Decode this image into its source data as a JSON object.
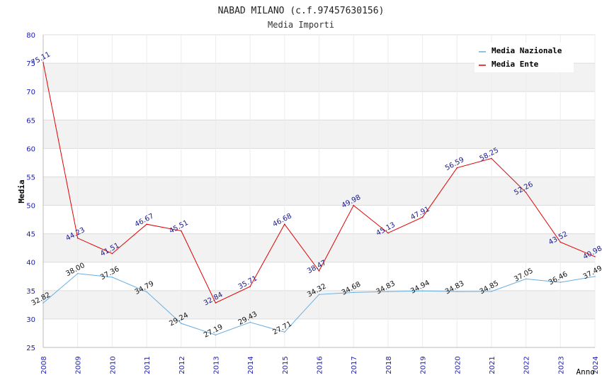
{
  "chart_data": {
    "type": "line",
    "title": "NABAD MILANO (c.f.97457630156)",
    "subtitle": "Media Importi",
    "xlabel": "Anno",
    "ylabel": "Media",
    "ylim": [
      25,
      80
    ],
    "yticks": [
      "25",
      "30",
      "35",
      "40",
      "45",
      "50",
      "55",
      "60",
      "65",
      "70",
      "75",
      "80"
    ],
    "categories": [
      "2008",
      "2009",
      "2010",
      "2011",
      "2012",
      "2013",
      "2014",
      "2015",
      "2016",
      "2017",
      "2018",
      "2019",
      "2020",
      "2021",
      "2022",
      "2023",
      "2024"
    ],
    "series": [
      {
        "name": "Media Nazionale",
        "color": "#6aaee0",
        "values": [
          32.82,
          38.0,
          37.36,
          34.79,
          29.24,
          27.19,
          29.43,
          27.71,
          34.32,
          34.68,
          34.83,
          34.94,
          34.83,
          34.85,
          37.05,
          36.46,
          37.49
        ],
        "labels": [
          "32.82",
          "38.00",
          "37.36",
          "34.79",
          "29.24",
          "27.19",
          "29.43",
          "27.71",
          "34.32",
          "34.68",
          "34.83",
          "34.94",
          "34.83",
          "34.85",
          "37.05",
          "36.46",
          "37.49"
        ]
      },
      {
        "name": "Media Ente",
        "color": "#e00000",
        "values": [
          75.11,
          44.23,
          41.51,
          46.67,
          45.51,
          32.84,
          35.71,
          46.68,
          38.47,
          49.98,
          45.13,
          47.91,
          56.59,
          58.25,
          52.26,
          43.52,
          40.98
        ],
        "labels": [
          "75.11",
          "44.23",
          "41.51",
          "46.67",
          "45.51",
          "32.84",
          "35.71",
          "46.68",
          "38.47",
          "49.98",
          "45.13",
          "47.91",
          "56.59",
          "58.25",
          "52.26",
          "43.52",
          "40.98"
        ]
      }
    ],
    "legend_position": "top-right",
    "grid": true
  }
}
